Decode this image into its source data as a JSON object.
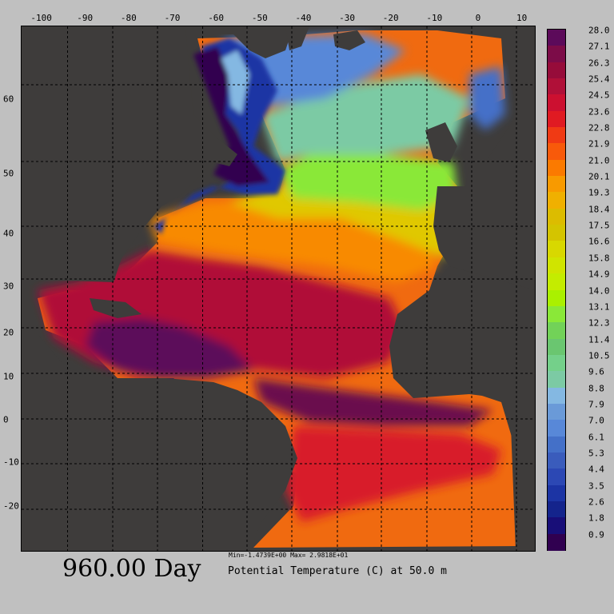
{
  "map": {
    "lon_ticks": [
      "-100",
      "-90",
      "-80",
      "-70",
      "-60",
      "-50",
      "-40",
      "-30",
      "-20",
      "-10",
      "0",
      "10"
    ],
    "lat_ticks": [
      "60",
      "50",
      "40",
      "30",
      "20",
      "10",
      "0",
      "-10",
      "-20"
    ],
    "lon_range": [
      -104.5,
      13
    ],
    "lat_range": [
      -29.5,
      67.5
    ],
    "land_color": "#3e3c3b",
    "grid": "dashed"
  },
  "colorbar": {
    "labels": [
      "28.0",
      "27.1",
      "26.3",
      "25.4",
      "24.5",
      "23.6",
      "22.8",
      "21.9",
      "21.0",
      "20.1",
      "19.3",
      "18.4",
      "17.5",
      "16.6",
      "15.8",
      "14.9",
      "14.0",
      "13.1",
      "12.3",
      "11.4",
      "10.5",
      "9.6",
      "8.8",
      "7.9",
      "7.0",
      "6.1",
      "5.3",
      "4.4",
      "3.5",
      "2.6",
      "1.8",
      "0.9"
    ],
    "colors": [
      "#5c0a5a",
      "#7c0c48",
      "#960c3a",
      "#b01038",
      "#cc1030",
      "#e01a22",
      "#f03a14",
      "#f85a0a",
      "#fb7a00",
      "#f89a00",
      "#f0b000",
      "#dcbc00",
      "#d4c400",
      "#d8d800",
      "#d0e400",
      "#c4ec00",
      "#aaf000",
      "#8ae838",
      "#72d258",
      "#6ac670",
      "#74d08a",
      "#7ccaa4",
      "#84b8e2",
      "#6a9ad8",
      "#5888d8",
      "#4470c8",
      "#3a5cbc",
      "#2c48b4",
      "#1c34a4",
      "#14248c",
      "#180e78",
      "#300050"
    ]
  },
  "footer": {
    "day": "960.00 Day",
    "minmax": "Min=-1.4739E+00  Max= 2.9818E+01",
    "variable": "Potential Temperature (C) at 50.0 m"
  }
}
